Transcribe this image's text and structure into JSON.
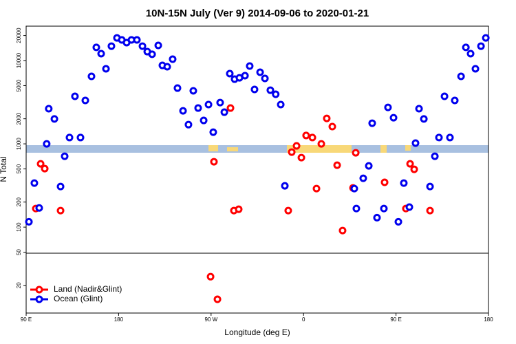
{
  "chart_data": {
    "type": "scatter",
    "title": "10N-15N July (Ver 9)   2014-09-06 to 2020-01-21",
    "x_label": "Longitude (deg E)",
    "y_label": "N Total",
    "log_y": true,
    "legend": "bottom-left",
    "xlim": [
      90,
      540
    ],
    "ylim": [
      9.3,
      25900
    ],
    "xticks": [
      {
        "value": 90,
        "label": "90 E"
      },
      180,
      {
        "value": 270,
        "label": "90 W"
      },
      {
        "value": 360,
        "label": "0"
      },
      {
        "value": 450,
        "label": "90 E"
      },
      {
        "value": 540,
        "label": "180"
      }
    ],
    "yticks": [
      20,
      50,
      100,
      200,
      500,
      1000,
      2000,
      5000,
      10000,
      20000
    ],
    "series": [
      {
        "name": "Land (Nadir&Glint)",
        "color": "#ff0000",
        "x": [
          99.4,
          104.1,
          108.1,
          123.5,
          272.8,
          288.9,
          292.2,
          296.9,
          345.1,
          348.5,
          353.2,
          357.9,
          362.5,
          368.6,
          372.6,
          377.3,
          382.6,
          388,
          392.7,
          398,
          408.1,
          410.8,
          438.9,
          459.6,
          463.7,
          467.7,
          483.1,
          269.5,
          276.2
        ],
        "values": [
          167,
          576,
          504,
          158,
          610,
          2690,
          158,
          164,
          158,
          796,
          945,
          683,
          1260,
          1190,
          290,
          1000,
          2020,
          1610,
          554,
          91,
          296,
          781,
          345,
          167,
          576,
          494,
          158,
          25.4,
          13.6
        ]
      },
      {
        "name": "Ocean (Glint)",
        "color": "#0000ee",
        "x": [
          92.7,
          98,
          102.7,
          110,
          112,
          117.5,
          123.5,
          127.5,
          132.2,
          137.5,
          142.9,
          147.6,
          153.6,
          158.3,
          163,
          167.7,
          173,
          178.4,
          183.1,
          187.8,
          192.5,
          197.8,
          203.2,
          207.9,
          212.6,
          218.6,
          222.6,
          227.3,
          232.6,
          237.3,
          242.7,
          248,
          252.7,
          257.4,
          262.8,
          267.5,
          272.1,
          278.8,
          282.9,
          288.2,
          292.9,
          297.6,
          303,
          307.6,
          312.3,
          317.7,
          322.4,
          327.7,
          332.9,
          337.8,
          341.8,
          409.4,
          411.4,
          418.1,
          423.5,
          426.8,
          431.5,
          438.2,
          442.2,
          447.6,
          452.3,
          457.6,
          463,
          469,
          472.4,
          477.1,
          483.1,
          487.8,
          491.8,
          497.2,
          502.5,
          507.2,
          513.3,
          518,
          522.6,
          527.3,
          532.7,
          537.4
        ],
        "values": [
          116,
          338,
          170,
          1000,
          2640,
          1990,
          307,
          710,
          1190,
          3720,
          1190,
          3320,
          6460,
          14400,
          12100,
          7960,
          14900,
          18700,
          17700,
          16400,
          17700,
          17700,
          14900,
          12800,
          11900,
          15200,
          8750,
          8430,
          10400,
          4670,
          2490,
          1700,
          4330,
          2690,
          1910,
          2960,
          1380,
          3130,
          2400,
          6970,
          5980,
          6210,
          6580,
          8590,
          4500,
          7240,
          6100,
          4410,
          3940,
          2960,
          313,
          290,
          167,
          386,
          544,
          1770,
          130,
          167,
          2740,
          2060,
          116,
          338,
          174,
          1020,
          2640,
          1990,
          307,
          710,
          1190,
          3720,
          1190,
          3320,
          6460,
          14400,
          12100,
          7960,
          14900,
          18700
        ]
      }
    ]
  }
}
